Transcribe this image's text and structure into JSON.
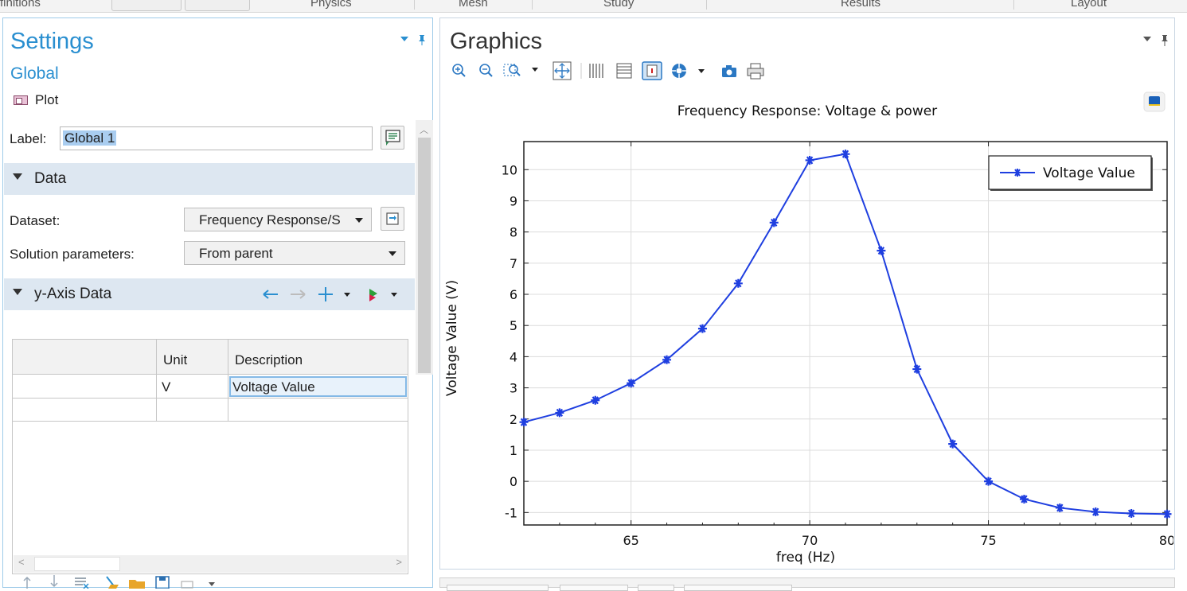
{
  "ribbon": {
    "tabs": [
      "finitions",
      "Physics",
      "Mesh",
      "Study",
      "Results",
      "Layout"
    ]
  },
  "settings": {
    "title": "Settings",
    "subtitle": "Global",
    "node": "Plot",
    "label_caption": "Label:",
    "label_value": "Global 1",
    "data_section": "Data",
    "dataset_caption": "Dataset:",
    "dataset_value": "Frequency Response/S",
    "solparams_caption": "Solution parameters:",
    "solparams_value": "From parent",
    "yaxis_section": "y-Axis Data",
    "table": {
      "headers": [
        "",
        "Unit",
        "Description"
      ],
      "rows": [
        [
          "",
          "V",
          "Voltage Value"
        ],
        [
          "",
          "",
          ""
        ]
      ]
    }
  },
  "graphics": {
    "title": "Graphics"
  },
  "colors": {
    "accent": "#2a8fd0",
    "series": "#1f3fe0",
    "section_bg": "#dde7f1"
  },
  "chart_data": {
    "type": "line",
    "title": "Frequency Response: Voltage & power",
    "xlabel": "freq (Hz)",
    "ylabel": "Voltage Value (V)",
    "xlim": [
      62,
      80
    ],
    "ylim": [
      -1.4,
      10.9
    ],
    "x_ticks": [
      65,
      70,
      75,
      80
    ],
    "y_ticks": [
      -1,
      0,
      1,
      2,
      3,
      4,
      5,
      6,
      7,
      8,
      9,
      10
    ],
    "grid": true,
    "legend_position": "top-right",
    "series": [
      {
        "name": "Voltage Value",
        "color": "#1f3fe0",
        "marker": "asterisk",
        "x": [
          62,
          63,
          64,
          65,
          66,
          67,
          68,
          69,
          70,
          71,
          72,
          73,
          74,
          75,
          76,
          77,
          78,
          79,
          80
        ],
        "y": [
          1.9,
          2.2,
          2.6,
          3.15,
          3.9,
          4.9,
          6.35,
          8.3,
          10.3,
          10.5,
          7.4,
          3.6,
          1.2,
          0.0,
          -0.57,
          -0.85,
          -0.98,
          -1.03,
          -1.05
        ]
      }
    ]
  }
}
